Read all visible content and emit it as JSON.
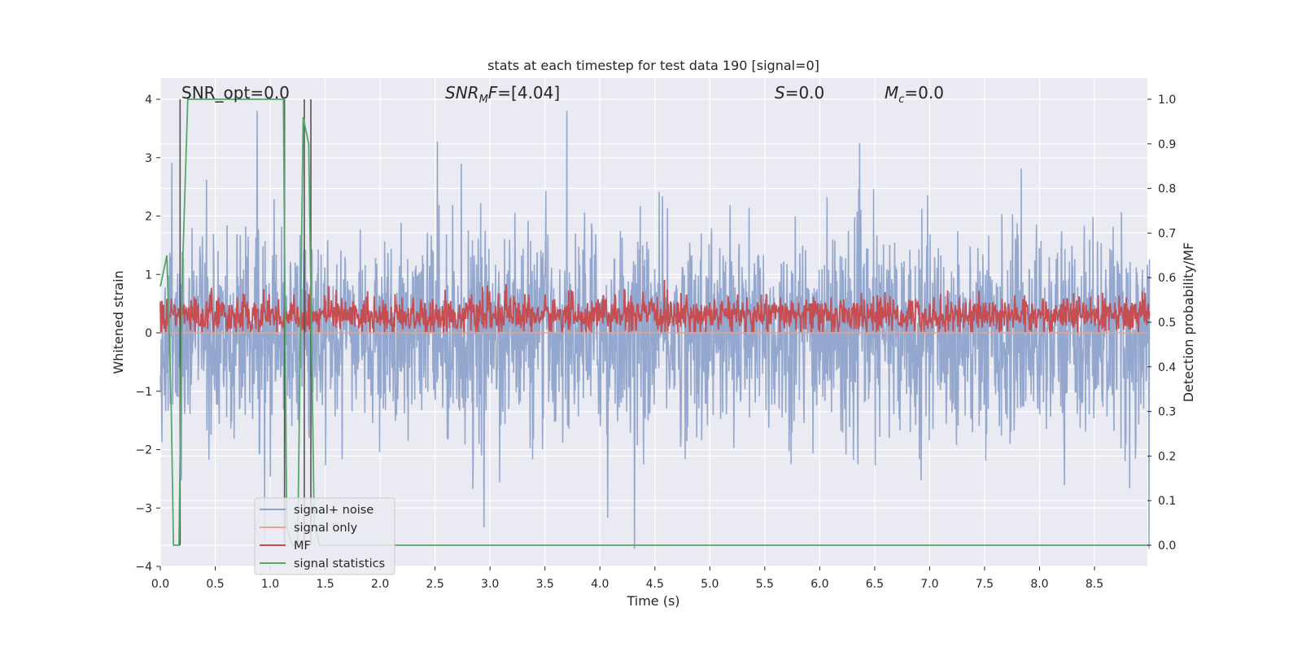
{
  "chart_data": {
    "type": "line",
    "title": "stats at each timestep for test data 190 [signal=0]",
    "xlabel": "Time (s)",
    "ylabel": "Whitened strain",
    "ylabel_right": "Detection probability/MF",
    "xlim": [
      0.0,
      9.0
    ],
    "ylim": [
      -4.0,
      4.35
    ],
    "ylim_right": [
      -0.045,
      1.045
    ],
    "xticks": [
      "0.0",
      "0.5",
      "1.0",
      "1.5",
      "2.0",
      "2.5",
      "3.0",
      "3.5",
      "4.0",
      "4.5",
      "5.0",
      "5.5",
      "6.0",
      "6.5",
      "7.0",
      "7.5",
      "8.0",
      "8.5"
    ],
    "yticks": [
      "4",
      "3",
      "2",
      "1",
      "0",
      "−1",
      "−2",
      "−3",
      "−4"
    ],
    "yticks_right": [
      "1.0",
      "0.9",
      "0.8",
      "0.7",
      "0.6",
      "0.5",
      "0.4",
      "0.3",
      "0.2",
      "0.1",
      "0.0"
    ],
    "grid": true,
    "legend_position": "lower-left",
    "annotations": {
      "snr_opt": "SNR_opt=0.0",
      "snr_mf": "[4.04]",
      "snr_mf_sym": "SNR",
      "snr_mf_sub": "M",
      "snr_mf_tail": "F=",
      "s_sym": "S",
      "s_val": "=0.0",
      "mc_sym": "M",
      "mc_sub": "c",
      "mc_val": "=0.0"
    },
    "series": [
      {
        "name": "signal+ noise",
        "color": "#8ea3cc",
        "description_stats": {
          "typical_range": [
            -1.4,
            1.2
          ],
          "peak_max": 3.8,
          "peak_min": -3.7
        }
      },
      {
        "name": "signal only",
        "color": "#e8a58a",
        "x": [
          0.0,
          9.0
        ],
        "y": [
          0.0,
          0.0
        ]
      },
      {
        "name": "MF",
        "color": "#c44e52",
        "description_stats": {
          "typical_range": [
            0.0,
            0.65
          ],
          "peak_max": 0.95
        }
      },
      {
        "name": "signal statistics",
        "color": "#55a868",
        "axis": "right",
        "x": [
          0.0,
          0.06,
          0.1,
          0.12,
          0.17,
          0.2,
          0.25,
          0.3,
          1.0,
          1.12,
          1.15,
          1.2,
          1.25,
          1.3,
          1.35,
          1.38,
          1.4,
          1.45,
          1.5,
          9.0
        ],
        "y": [
          0.58,
          0.65,
          0.3,
          0.0,
          0.0,
          0.6,
          1.0,
          1.0,
          1.0,
          1.0,
          0.04,
          0.0,
          0.0,
          0.96,
          0.9,
          0.4,
          0.05,
          0.0,
          0.0,
          0.0
        ]
      }
    ],
    "vertical_markers": {
      "color": "#555555",
      "x": [
        0.18,
        1.13,
        1.31,
        1.37
      ]
    }
  }
}
